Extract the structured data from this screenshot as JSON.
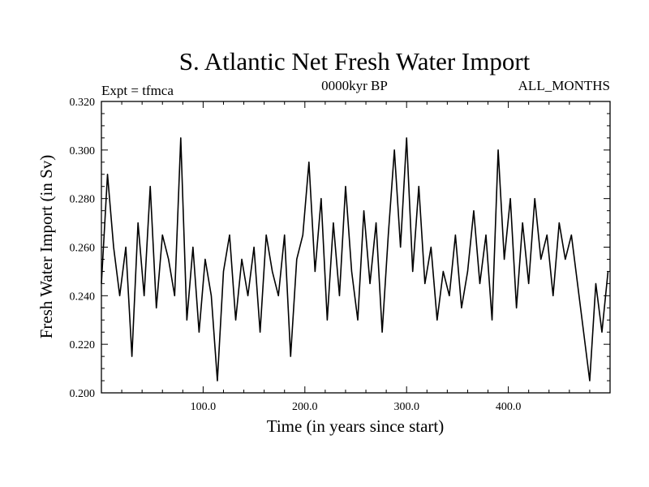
{
  "chart_data": {
    "type": "line",
    "title": "S. Atlantic Net Fresh Water Import",
    "subtitle_left": "Expt = tfmca",
    "subtitle_center": "0000kyr BP",
    "subtitle_right": "ALL_MONTHS",
    "xlabel": "Time (in years since start)",
    "ylabel": "Fresh Water Import (in Sv)",
    "xlim": [
      0,
      500
    ],
    "ylim": [
      0.2,
      0.32
    ],
    "xticks": [
      100,
      200,
      300,
      400
    ],
    "xtick_labels": [
      "100.0",
      "200.0",
      "300.0",
      "400.0"
    ],
    "yticks": [
      0.2,
      0.22,
      0.24,
      0.26,
      0.28,
      0.3,
      0.32
    ],
    "ytick_labels": [
      "0.200",
      "0.220",
      "0.240",
      "0.260",
      "0.280",
      "0.300",
      "0.320"
    ],
    "grid": false,
    "line_color": "#000000",
    "series": [
      {
        "x": [
          0,
          6,
          12,
          18,
          24,
          30,
          36,
          42,
          48,
          54,
          60,
          66,
          72,
          78,
          84,
          90,
          96,
          102,
          108,
          114,
          120,
          126,
          132,
          138,
          144,
          150,
          156,
          162,
          168,
          174,
          180,
          186,
          192,
          198,
          204,
          210,
          216,
          222,
          228,
          234,
          240,
          246,
          252,
          258,
          264,
          270,
          276,
          282,
          288,
          294,
          300,
          306,
          312,
          318,
          324,
          330,
          336,
          342,
          348,
          354,
          360,
          366,
          372,
          378,
          384,
          390,
          396,
          402,
          408,
          414,
          420,
          426,
          432,
          438,
          444,
          450,
          456,
          462,
          468,
          474,
          480,
          486,
          492,
          498
        ],
        "y": [
          0.245,
          0.29,
          0.26,
          0.24,
          0.26,
          0.215,
          0.27,
          0.24,
          0.285,
          0.235,
          0.265,
          0.255,
          0.24,
          0.305,
          0.23,
          0.26,
          0.225,
          0.255,
          0.24,
          0.205,
          0.25,
          0.265,
          0.23,
          0.255,
          0.24,
          0.26,
          0.225,
          0.265,
          0.25,
          0.24,
          0.265,
          0.215,
          0.255,
          0.265,
          0.295,
          0.25,
          0.28,
          0.23,
          0.27,
          0.24,
          0.285,
          0.25,
          0.23,
          0.275,
          0.245,
          0.27,
          0.225,
          0.265,
          0.3,
          0.26,
          0.305,
          0.25,
          0.285,
          0.245,
          0.26,
          0.23,
          0.25,
          0.24,
          0.265,
          0.235,
          0.25,
          0.275,
          0.245,
          0.265,
          0.23,
          0.3,
          0.255,
          0.28,
          0.235,
          0.27,
          0.245,
          0.28,
          0.255,
          0.265,
          0.24,
          0.27,
          0.255,
          0.265,
          0.245,
          0.225,
          0.205,
          0.245,
          0.225,
          0.25
        ]
      }
    ]
  }
}
